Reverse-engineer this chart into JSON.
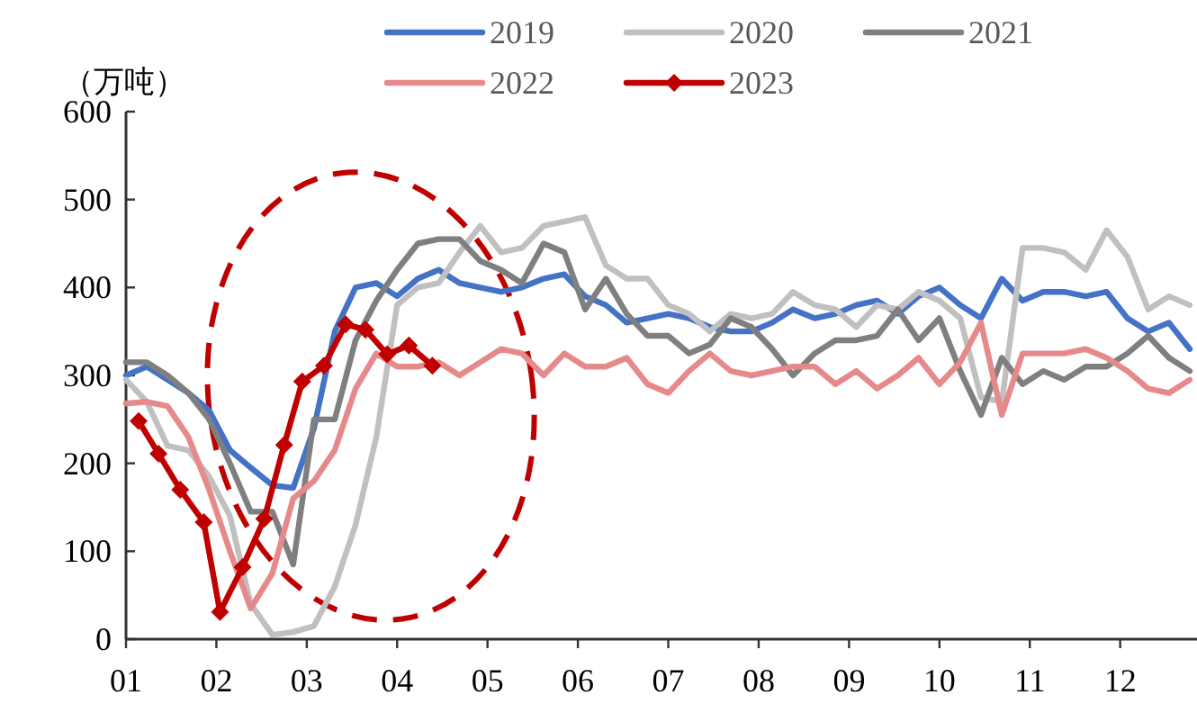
{
  "chart_data": {
    "type": "line",
    "ylabel": "（万吨）",
    "xlim": [
      1,
      12.85
    ],
    "ylim": [
      0,
      600
    ],
    "yticks": [
      0,
      100,
      200,
      300,
      400,
      500,
      600
    ],
    "xticks": [
      {
        "value": 1,
        "label": "01"
      },
      {
        "value": 2,
        "label": "02"
      },
      {
        "value": 3,
        "label": "03"
      },
      {
        "value": 4,
        "label": "04"
      },
      {
        "value": 5,
        "label": "05"
      },
      {
        "value": 6,
        "label": "06"
      },
      {
        "value": 7,
        "label": "07"
      },
      {
        "value": 8,
        "label": "08"
      },
      {
        "value": 9,
        "label": "09"
      },
      {
        "value": 10,
        "label": "10"
      },
      {
        "value": 11,
        "label": "11"
      },
      {
        "value": 12,
        "label": "12"
      }
    ],
    "legend": "top",
    "grid": false,
    "x": [
      1.0,
      1.23,
      1.46,
      1.69,
      1.92,
      2.15,
      2.38,
      2.62,
      2.85,
      3.08,
      3.31,
      3.54,
      3.77,
      4.0,
      4.23,
      4.46,
      4.69,
      4.92,
      5.15,
      5.38,
      5.62,
      5.85,
      6.08,
      6.31,
      6.54,
      6.77,
      7.0,
      7.23,
      7.46,
      7.69,
      7.92,
      8.15,
      8.38,
      8.62,
      8.85,
      9.08,
      9.31,
      9.54,
      9.77,
      10.0,
      10.23,
      10.46,
      10.69,
      10.92,
      11.15,
      11.38,
      11.62,
      11.85,
      12.08,
      12.31,
      12.54,
      12.77
    ],
    "series": [
      {
        "name": "2019",
        "color": "#4472c4",
        "values": [
          300,
          310,
          295,
          280,
          260,
          215,
          195,
          175,
          172,
          240,
          350,
          400,
          405,
          390,
          410,
          420,
          405,
          400,
          395,
          400,
          410,
          415,
          390,
          380,
          360,
          365,
          370,
          365,
          355,
          350,
          350,
          360,
          375,
          365,
          370,
          380,
          385,
          370,
          390,
          400,
          380,
          365,
          410,
          385,
          395,
          395,
          390,
          395,
          365,
          350,
          360,
          330
        ]
      },
      {
        "name": "2020",
        "color": "#c0c0c0",
        "values": [
          295,
          270,
          220,
          215,
          185,
          140,
          40,
          5,
          8,
          15,
          60,
          130,
          230,
          380,
          400,
          405,
          440,
          470,
          440,
          445,
          470,
          475,
          480,
          425,
          410,
          410,
          380,
          370,
          350,
          370,
          365,
          370,
          395,
          380,
          375,
          355,
          380,
          375,
          395,
          385,
          365,
          275,
          270,
          445,
          445,
          440,
          420,
          465,
          435,
          375,
          390,
          380
        ]
      },
      {
        "name": "2021",
        "color": "#7f7f7f",
        "values": [
          315,
          315,
          300,
          280,
          250,
          200,
          145,
          145,
          85,
          250,
          250,
          340,
          385,
          420,
          450,
          455,
          455,
          430,
          420,
          405,
          450,
          440,
          375,
          410,
          370,
          345,
          345,
          325,
          335,
          365,
          355,
          330,
          300,
          325,
          340,
          340,
          345,
          375,
          340,
          365,
          305,
          255,
          320,
          290,
          305,
          295,
          310,
          310,
          325,
          345,
          320,
          305
        ]
      },
      {
        "name": "2022",
        "color": "#e6898a",
        "values": [
          268,
          270,
          265,
          230,
          170,
          100,
          35,
          75,
          160,
          180,
          215,
          285,
          325,
          310,
          310,
          315,
          300,
          315,
          330,
          325,
          300,
          325,
          310,
          310,
          320,
          290,
          280,
          305,
          325,
          305,
          300,
          305,
          310,
          310,
          290,
          305,
          285,
          300,
          320,
          290,
          315,
          360,
          255,
          325,
          325,
          325,
          330,
          320,
          305,
          285,
          280,
          295
        ]
      },
      {
        "name": "2023",
        "color": "#c00000",
        "marker": "diamond",
        "x": [
          1.14,
          1.36,
          1.6,
          1.86,
          2.04,
          2.29,
          2.53,
          2.75,
          2.95,
          3.19,
          3.43,
          3.65,
          3.89,
          4.13,
          4.39
        ],
        "values": [
          248,
          211,
          170,
          133,
          31,
          82,
          137,
          221,
          293,
          311,
          358,
          352,
          324,
          334,
          311
        ]
      }
    ]
  }
}
